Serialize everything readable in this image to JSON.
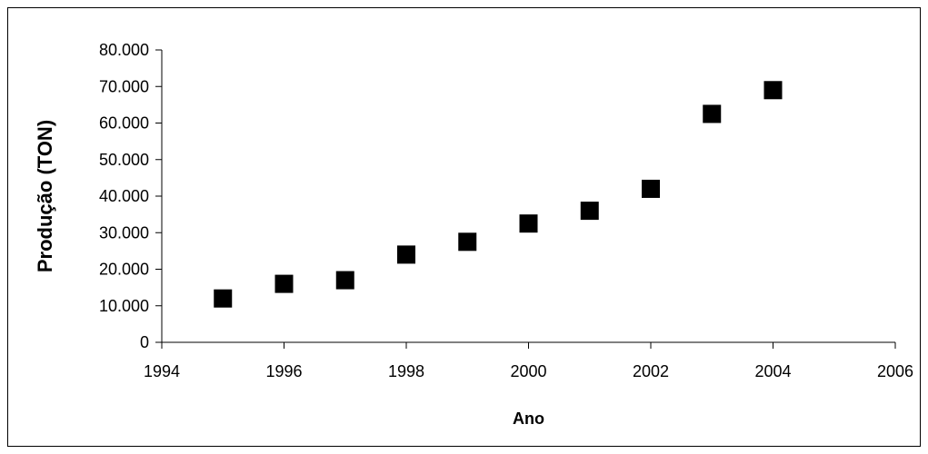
{
  "chart_data": {
    "type": "scatter",
    "title": "",
    "xlabel": "Ano",
    "ylabel": "Produção (TON)",
    "xlim": [
      1994,
      2006
    ],
    "ylim": [
      0,
      80000
    ],
    "x_ticks": [
      1994,
      1996,
      1998,
      2000,
      2002,
      2004,
      2006
    ],
    "y_ticks": [
      0,
      10000,
      20000,
      30000,
      40000,
      50000,
      60000,
      70000,
      80000
    ],
    "x_tick_labels": [
      "1994",
      "1996",
      "1998",
      "2000",
      "2002",
      "2004",
      "2006"
    ],
    "y_tick_labels": [
      "0",
      "10.000",
      "20.000",
      "30.000",
      "40.000",
      "50.000",
      "60.000",
      "70.000",
      "80.000"
    ],
    "grid": false,
    "legend": "none",
    "marker": "square",
    "marker_color": "#000000",
    "series": [
      {
        "x": [
          1995,
          1996,
          1997,
          1998,
          1999,
          2000,
          2001,
          2002,
          2003,
          2004
        ],
        "y": [
          12000,
          16000,
          17000,
          24000,
          27500,
          32500,
          36000,
          42000,
          62500,
          69000
        ]
      }
    ]
  }
}
